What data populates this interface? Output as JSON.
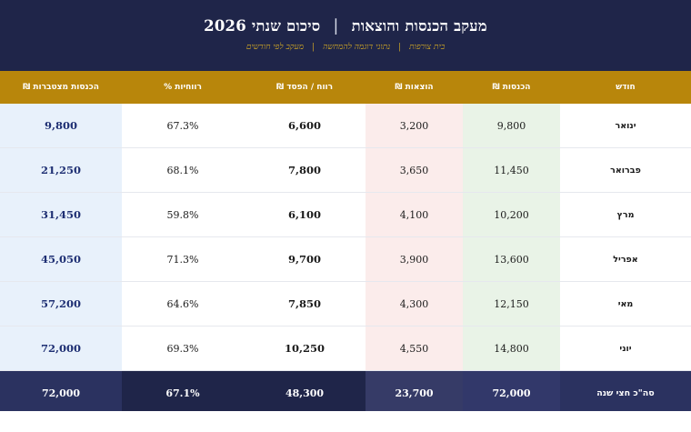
{
  "header": {
    "title_main": "מעקב הכנסות והוצאות",
    "title_separator": "|",
    "title_year": "סיכום שנתי 2026",
    "subtitle_parts": [
      "בית צורפות",
      "נתוני דוגמה להמחשה",
      "מעקב לפי חודשים"
    ],
    "subtitle_separator": "|"
  },
  "table": {
    "columns": {
      "month": "חודש",
      "income": "הכנסות ₪",
      "expenses": "הוצאות ₪",
      "profit": "רווח / הפסד ₪",
      "margin": "רווחיות %",
      "cumulative": "הכנסות מצטברות ₪"
    },
    "rows": [
      {
        "month": "ינואר",
        "income": "9,800",
        "expenses": "3,200",
        "profit": "6,600",
        "margin": "67.3%",
        "cumulative": "9,800"
      },
      {
        "month": "פברואר",
        "income": "11,450",
        "expenses": "3,650",
        "profit": "7,800",
        "margin": "68.1%",
        "cumulative": "21,250"
      },
      {
        "month": "מרץ",
        "income": "10,200",
        "expenses": "4,100",
        "profit": "6,100",
        "margin": "59.8%",
        "cumulative": "31,450"
      },
      {
        "month": "אפריל",
        "income": "13,600",
        "expenses": "3,900",
        "profit": "9,700",
        "margin": "71.3%",
        "cumulative": "45,050"
      },
      {
        "month": "מאי",
        "income": "12,150",
        "expenses": "4,300",
        "profit": "7,850",
        "margin": "64.6%",
        "cumulative": "57,200"
      },
      {
        "month": "יוני",
        "income": "14,800",
        "expenses": "4,550",
        "profit": "10,250",
        "margin": "69.3%",
        "cumulative": "72,000"
      }
    ],
    "footer": {
      "label": "סה\"כ חצי שנה",
      "income": "72,000",
      "expenses": "23,700",
      "profit": "48,300",
      "margin": "67.1%",
      "cumulative": "72,000"
    }
  },
  "colors": {
    "header_bg": "#1f2549",
    "accent_gold": "#b8860b",
    "income_bg": "#e9f3e7",
    "expense_bg": "#fbeceb",
    "cumulative_bg": "#e8f1fb",
    "cumulative_text": "#1e2f73"
  }
}
